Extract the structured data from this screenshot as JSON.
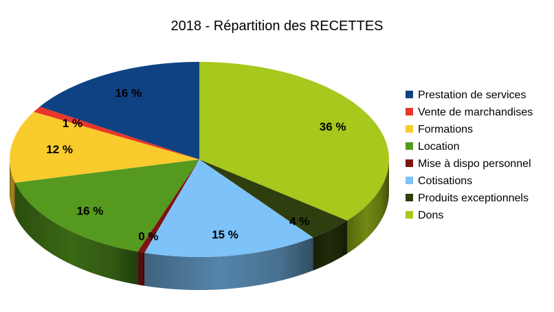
{
  "chart_data": {
    "type": "pie",
    "title": "2018 - Répartition des RECETTES",
    "legend_position": "right",
    "categories": [
      "Prestation de services",
      "Vente de marchandises",
      "Formations",
      "Location",
      "Mise à dispo personnel",
      "Cotisations",
      "Produits exceptionnels",
      "Dons"
    ],
    "values": [
      16,
      1,
      12,
      16,
      0,
      15,
      4,
      36
    ],
    "labels": [
      "16 %",
      "1 %",
      "12 %",
      "16 %",
      "0 %",
      "15 %",
      "4 %",
      "36 %"
    ],
    "colors": [
      "#0e4283",
      "#e8372a",
      "#f9cb2d",
      "#55991f",
      "#7e1414",
      "#7dc2f9",
      "#2e3e0e",
      "#a7c81c"
    ]
  }
}
